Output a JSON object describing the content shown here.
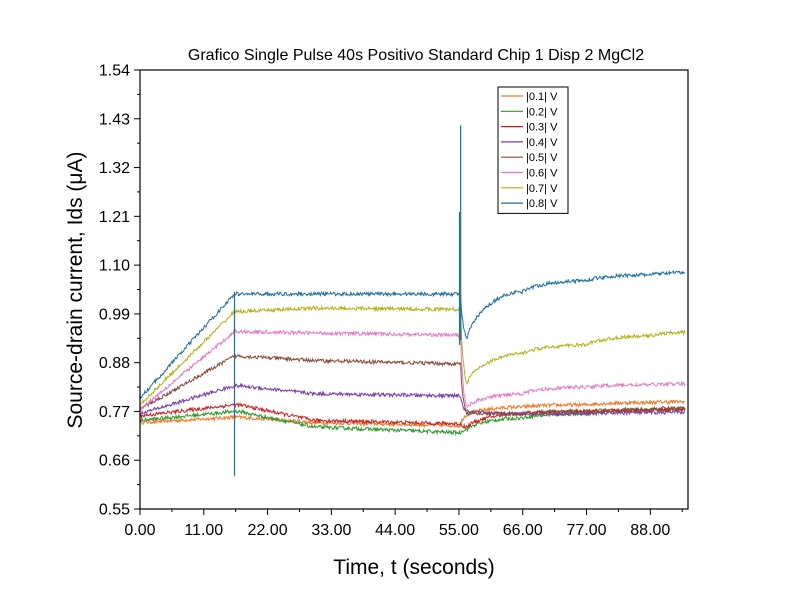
{
  "chart_data": {
    "type": "line",
    "title": "Grafico Single Pulse 40s Positivo Standard Chip 1 Disp 2 MgCl2",
    "xlabel": "Time, t (seconds)",
    "ylabel": "Source-drain current, Ids (μA)",
    "xlim": [
      0,
      94.5
    ],
    "ylim": [
      0.55,
      1.54
    ],
    "xticks": [
      "0.00",
      "11.00",
      "22.00",
      "33.00",
      "44.00",
      "55.00",
      "66.00",
      "77.00",
      "88.00"
    ],
    "yticks": [
      "0.55",
      "0.66",
      "0.77",
      "0.88",
      "0.99",
      "1.10",
      "1.21",
      "1.32",
      "1.43",
      "1.54"
    ],
    "grid": false,
    "legend_position": "top-right",
    "pulse_on": 16.3,
    "pulse_off": 55.3,
    "series": [
      {
        "name": "|0.1| V",
        "color": "#f0782a",
        "x": [
          0,
          16.3,
          17,
          30,
          55.3,
          56.5,
          66,
          77,
          88,
          94
        ],
        "y": [
          0.745,
          0.757,
          0.757,
          0.745,
          0.738,
          0.762,
          0.78,
          0.785,
          0.79,
          0.792
        ]
      },
      {
        "name": "|0.2| V",
        "color": "#2a9a2a",
        "x": [
          0,
          16.3,
          17,
          30,
          55.3,
          56.5,
          66,
          77,
          88,
          94
        ],
        "y": [
          0.75,
          0.77,
          0.77,
          0.735,
          0.722,
          0.73,
          0.755,
          0.765,
          0.772,
          0.775
        ]
      },
      {
        "name": "|0.3| V",
        "color": "#cc1f1f",
        "x": [
          0,
          16.3,
          17,
          30,
          55.3,
          56.5,
          66,
          77,
          88,
          94
        ],
        "y": [
          0.76,
          0.785,
          0.785,
          0.75,
          0.742,
          0.735,
          0.765,
          0.77,
          0.772,
          0.775
        ]
      },
      {
        "name": "|0.4| V",
        "color": "#7b3fa8",
        "x": [
          0,
          16.3,
          17,
          30,
          55.3,
          56.5,
          66,
          77,
          88,
          94
        ],
        "y": [
          0.765,
          0.828,
          0.828,
          0.81,
          0.805,
          0.77,
          0.765,
          0.765,
          0.767,
          0.768
        ]
      },
      {
        "name": "|0.5| V",
        "color": "#8a4b3a",
        "x": [
          0,
          16.3,
          17,
          30,
          55.3,
          56.5,
          66,
          77,
          88,
          94
        ],
        "y": [
          0.775,
          0.895,
          0.895,
          0.885,
          0.877,
          0.765,
          0.765,
          0.77,
          0.775,
          0.778
        ]
      },
      {
        "name": "|0.6| V",
        "color": "#e07cc8",
        "x": [
          0,
          16.3,
          17,
          30,
          55.3,
          56.5,
          66,
          77,
          88,
          94
        ],
        "y": [
          0.775,
          0.95,
          0.95,
          0.947,
          0.942,
          0.78,
          0.81,
          0.825,
          0.83,
          0.832
        ]
      },
      {
        "name": "|0.7| V",
        "color": "#b2b21a",
        "x": [
          0,
          16.3,
          17,
          30,
          55.3,
          56.5,
          66,
          77,
          88,
          94
        ],
        "y": [
          0.785,
          0.995,
          0.995,
          1.003,
          1.0,
          0.835,
          0.9,
          0.92,
          0.94,
          0.948
        ]
      },
      {
        "name": "|0.8| V",
        "color": "#1f6f9e",
        "x": [
          0,
          16.3,
          17,
          30,
          55.3,
          56.5,
          66,
          77,
          88,
          94
        ],
        "y": [
          0.8,
          1.035,
          1.035,
          1.035,
          1.035,
          0.935,
          1.04,
          1.065,
          1.078,
          1.083
        ]
      }
    ],
    "spikes": [
      {
        "series": "|0.8| V",
        "x": 16.3,
        "y_min": 0.625,
        "y_max": 1.04
      },
      {
        "series": "|0.8| V",
        "x": 55.3,
        "y_min": 0.93,
        "y_max": 1.415
      },
      {
        "series": "|0.8| V",
        "x": 55.1,
        "y_min": 0.92,
        "y_max": 1.22
      }
    ]
  }
}
